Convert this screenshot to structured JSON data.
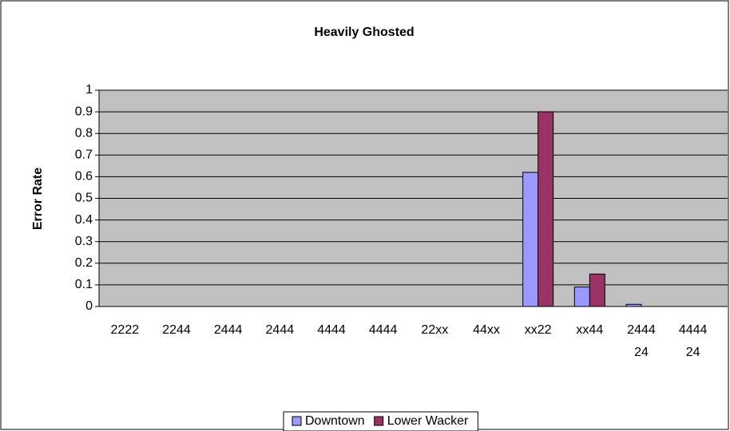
{
  "chart_data": {
    "type": "bar",
    "title": "Heavily Ghosted",
    "y_label": "Error Rate",
    "categories": [
      "2222",
      "2244",
      "2444",
      "2444",
      "4444",
      "4444",
      "22xx",
      "44xx",
      "xx22",
      "xx44",
      "2444 24",
      "4444 24"
    ],
    "series": [
      {
        "name": "Downtown",
        "color": "#9999ff",
        "values": [
          0,
          0,
          0,
          0,
          0,
          0,
          0,
          0,
          0.62,
          0.09,
          0.01,
          0
        ]
      },
      {
        "name": "Lower Wacker",
        "color": "#993366",
        "values": [
          0,
          0,
          0,
          0,
          0,
          0,
          0,
          0,
          0.9,
          0.15,
          0,
          0
        ]
      }
    ],
    "ylim": [
      0,
      1
    ],
    "yticks": [
      0,
      0.1,
      0.2,
      0.3,
      0.4,
      0.5,
      0.6,
      0.7,
      0.8,
      0.9,
      1
    ],
    "grid": true,
    "legend": "bottom"
  }
}
